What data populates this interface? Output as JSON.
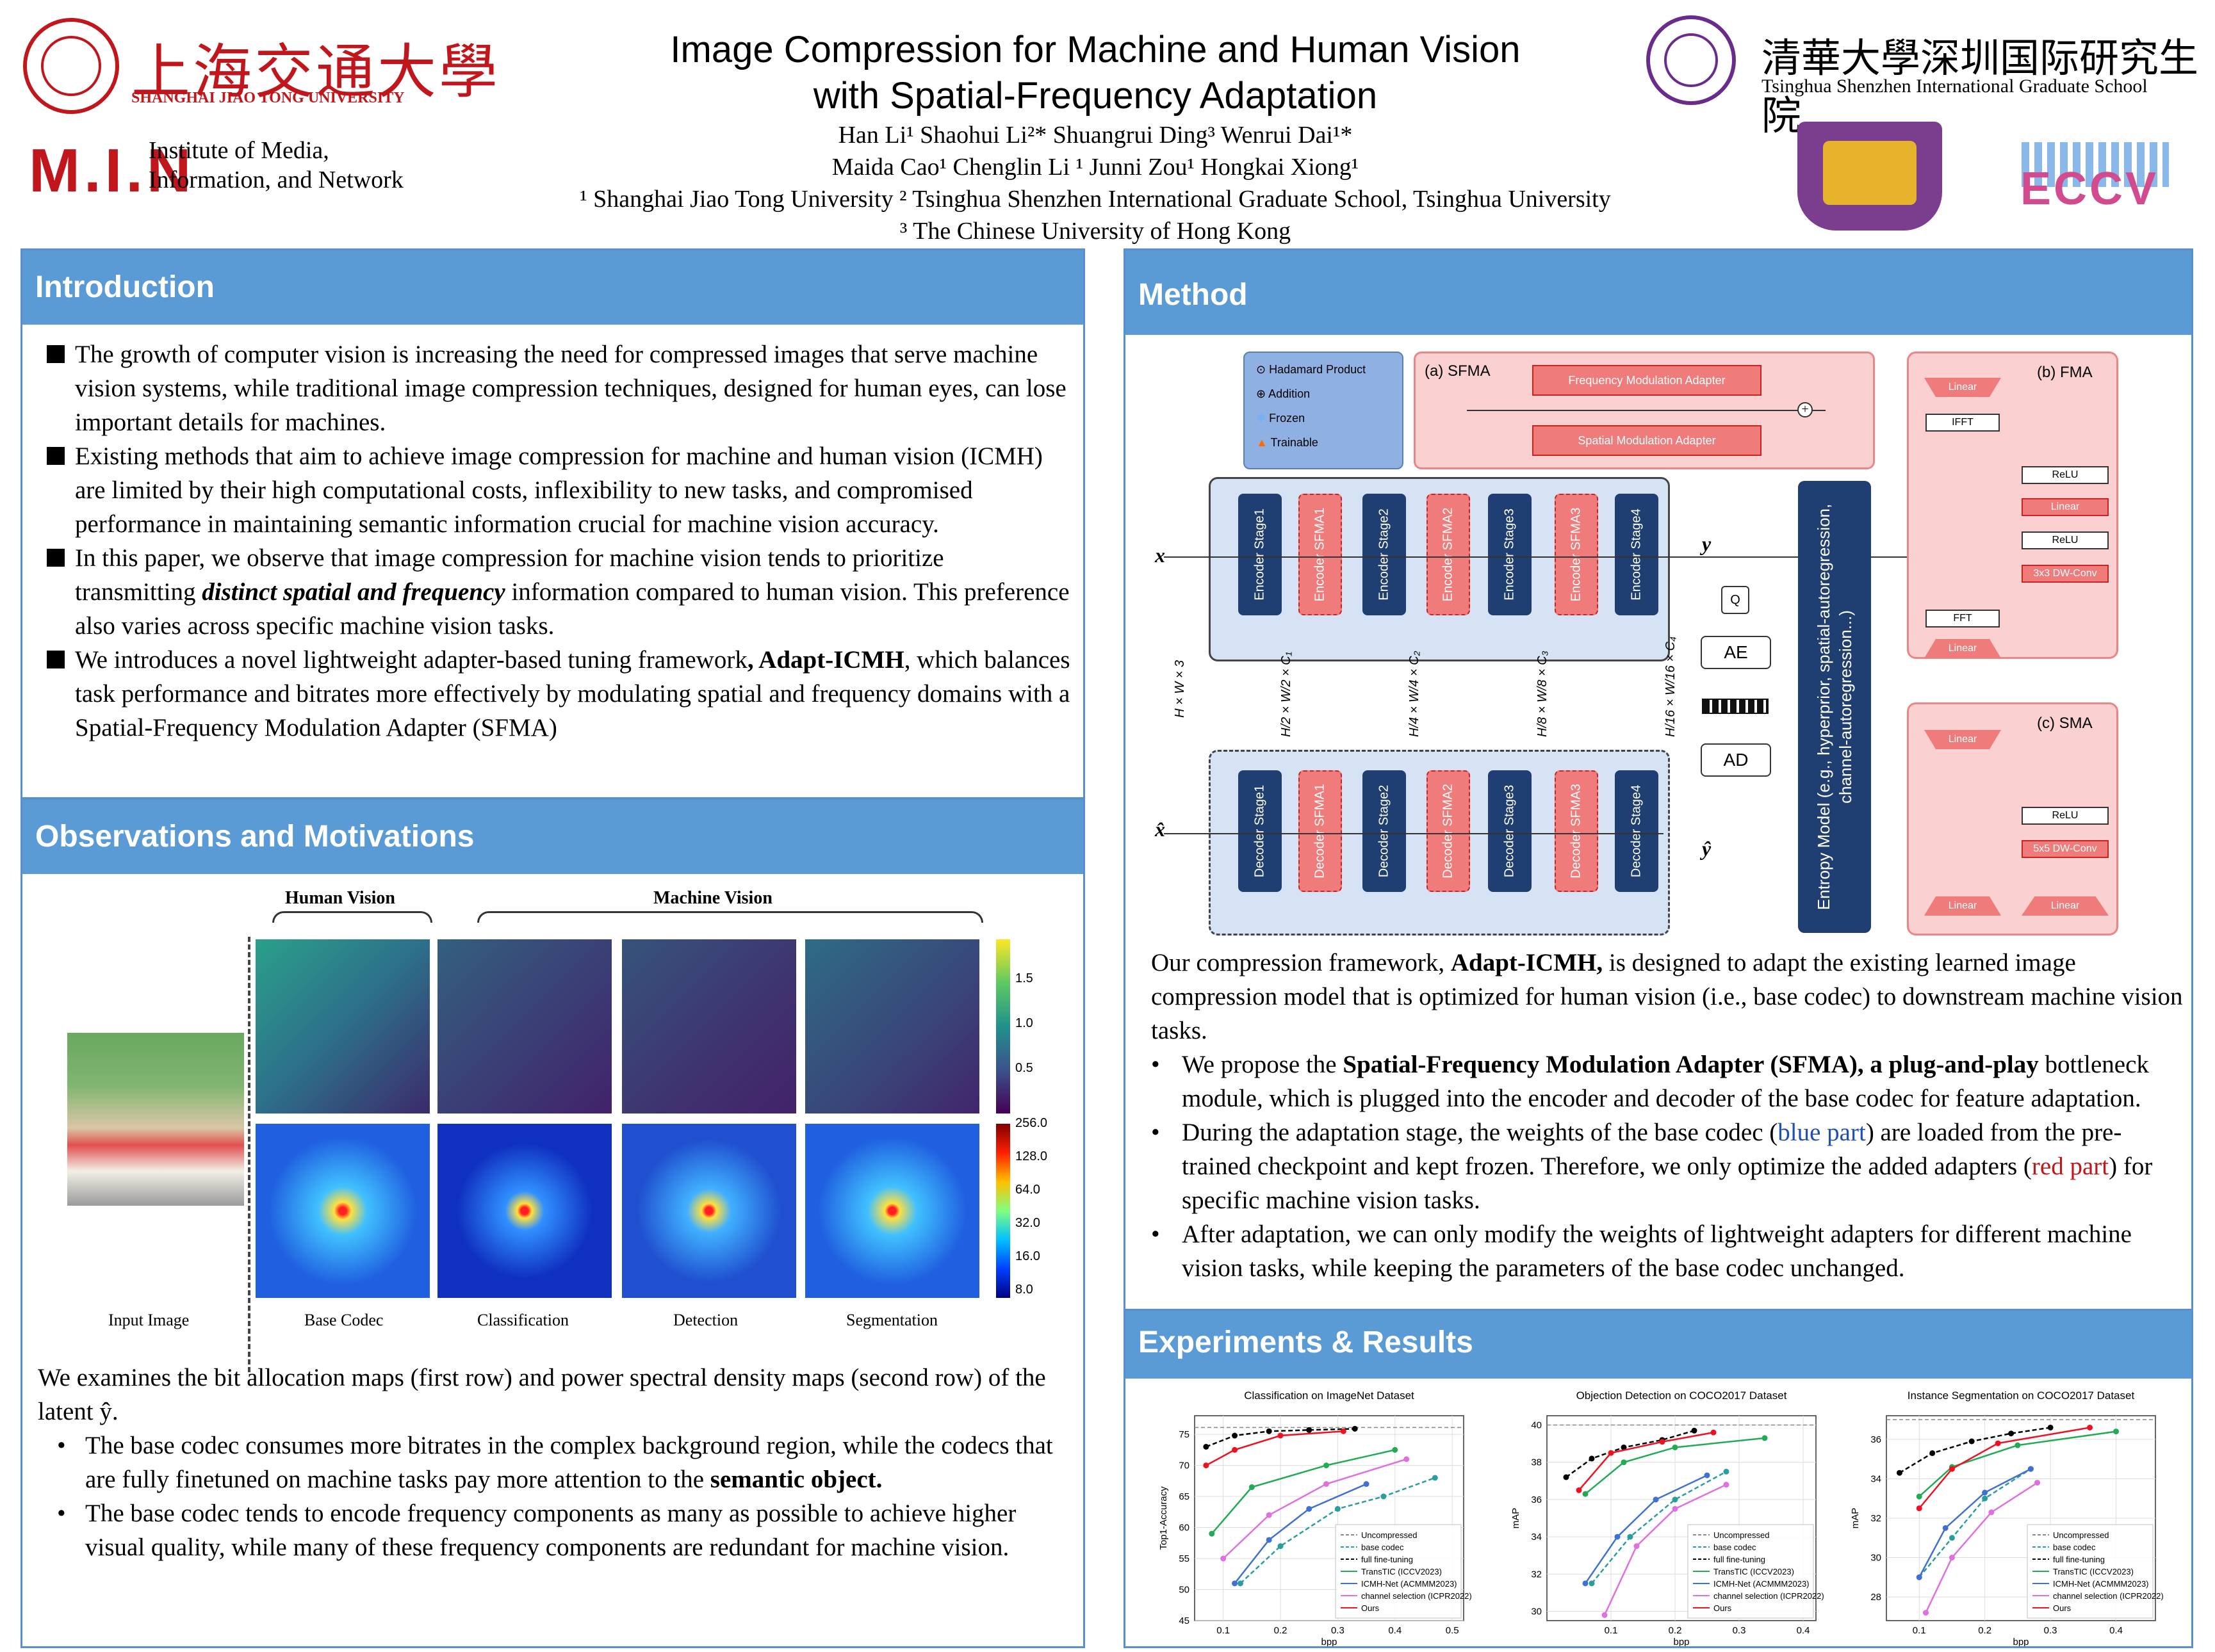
{
  "header": {
    "title_line1": "Image Compression for Machine and Human Vision",
    "title_line2": "with Spatial-Frequency Adaptation",
    "authors_line1": "Han Li¹  Shaohui Li²*  Shuangrui Ding³  Wenrui Dai¹*",
    "authors_line2": "Maida Cao¹  Chenglin Li ¹ Junni Zou¹  Hongkai Xiong¹",
    "affil_line1": "¹ Shanghai Jiao Tong University     ² Tsinghua Shenzhen International Graduate School, Tsinghua University",
    "affil_line2": "³ The Chinese University of Hong Kong",
    "sjtu_name": "上海交通大學",
    "sjtu_en": "SHANGHAI JIAO TONG UNIVERSITY",
    "min_logo": "M.I.N",
    "min_text1": "Institute of Media,",
    "min_text2": "Information, and Network",
    "tsinghua_name": "清華大學深圳国际研究生院",
    "tsinghua_en": "Tsinghua Shenzhen International Graduate School",
    "eccv": "ECCV"
  },
  "intro": {
    "heading": "Introduction",
    "b1": "The growth of computer vision is increasing the need for compressed images that serve machine vision systems, while traditional image compression techniques, designed for human eyes, can lose important details for machines.",
    "b2": "Existing methods that aim to achieve image compression for machine and human vision (ICMH) are limited by their high computational costs, inflexibility to new tasks, and compromised performance in maintaining semantic information crucial for machine vision accuracy.",
    "b3a": "In this paper, we observe that image compression for machine vision tends to prioritize transmitting ",
    "b3b": "distinct spatial and frequency",
    "b3c": " information compared to human vision. This preference also varies across specific machine vision tasks.",
    "b4a": "We introduces a novel lightweight adapter-based tuning framework",
    "b4b": ", Adapt-ICMH",
    "b4c": ", which balances task performance and bitrates more effectively by modulating spatial and frequency domains with a Spatial-Frequency Modulation Adapter (SFMA)"
  },
  "obs": {
    "heading": "Observations and Motivations",
    "human_vision": "Human Vision",
    "machine_vision": "Machine Vision",
    "cbar1": [
      "1.5",
      "1.0",
      "0.5"
    ],
    "cbar2": [
      "256.0",
      "128.0",
      "64.0",
      "32.0",
      "16.0",
      "8.0"
    ],
    "col_labels": [
      "Input Image",
      "Base Codec",
      "Classification",
      "Detection",
      "Segmentation"
    ],
    "p1": "We examines the bit allocation maps (first row) and power spectral density maps (second row) of the latent ŷ.",
    "d1a": "The base codec consumes more bitrates in the complex background region, while the codecs that are fully finetuned on machine tasks pay more attention to the ",
    "d1b": "semantic object.",
    "d2": "The base codec tends to encode frequency components as many as possible to achieve higher visual quality, while many of these frequency components are redundant for machine vision."
  },
  "method": {
    "heading": "Method",
    "legend": [
      "Hadamard Product",
      "Addition",
      "Frozen",
      "Trainable"
    ],
    "sfma_title": "(a) SFMA",
    "fma_adapter": "Frequency Modulation Adapter",
    "sma_adapter": "Spatial Modulation Adapter",
    "encoders": [
      "Encoder Stage1",
      "Encoder SFMA1",
      "Encoder Stage2",
      "Encoder SFMA2",
      "Encoder Stage3",
      "Encoder SFMA3",
      "Encoder Stage4"
    ],
    "decoders": [
      "Decoder Stage1",
      "Decoder SFMA1",
      "Decoder Stage2",
      "Decoder SFMA2",
      "Decoder Stage3",
      "Decoder SFMA3",
      "Decoder Stage4"
    ],
    "x": "x",
    "xhat": "x̂",
    "y": "y",
    "yhat": "ŷ",
    "q": "Q",
    "ae": "AE",
    "ad": "AD",
    "dims": [
      "H × W × 3",
      "H/2 × W/2 × C₁",
      "H/4 × W/4 × C₂",
      "H/8 × W/8 × C₃",
      "H/16 × W/16 × C₄"
    ],
    "entropy": "Entropy Model (e.g., hyperprior, spatial-autoregression, channel-autoregression...)",
    "fma_title": "(b) FMA",
    "fma_blocks": [
      "Linear",
      "IFFT",
      "ReLU",
      "Linear",
      "ReLU",
      "3x3 DW-Conv",
      "FFT",
      "Linear"
    ],
    "sma_title": "(c) SMA",
    "sma_blocks": [
      "Linear",
      "ReLU",
      "5x5 DW-Conv",
      "Linear",
      "Linear"
    ],
    "p1a": "Our compression framework, ",
    "p1b": "Adapt-ICMH,",
    "p1c": " is designed to adapt the existing learned image compression model that is optimized for human vision (i.e., base codec) to downstream machine vision tasks.",
    "d1a": "We propose the ",
    "d1b": "Spatial-Frequency Modulation Adapter (SFMA), a plug-and-play",
    "d1c": " bottleneck module, which is plugged into the encoder and decoder of the base codec for feature adaptation.",
    "d2a": "During the adaptation stage, the weights of the base codec (",
    "d2b": "blue part",
    "d2c": ") are loaded from the pre-trained checkpoint and kept frozen. Therefore, we only optimize the added adapters (",
    "d2d": "red part",
    "d2e": ") for specific machine vision tasks.",
    "d3": "After adaptation, we can only modify the weights of lightweight adapters for different machine vision tasks, while keeping the parameters of the base codec unchanged."
  },
  "results": {
    "heading": "Experiments & Results",
    "legend": [
      "Uncompressed",
      "base codec",
      "full fine-tuning",
      "TransTIC (ICCV2023)",
      "ICMH-Net (ACMMM2023)",
      "channel selection (ICPR2022)",
      "Ours"
    ]
  },
  "chart_data": [
    {
      "type": "line",
      "title": "Classification on ImageNet Dataset",
      "xlabel": "bpp",
      "ylabel": "Top1-Accuracy",
      "xlim": [
        0.05,
        0.52
      ],
      "ylim": [
        45,
        78
      ],
      "xticks": [
        "0.1",
        "0.2",
        "0.3",
        "0.4",
        "0.5"
      ],
      "yticks": [
        "45",
        "50",
        "55",
        "60",
        "65",
        "70",
        "75"
      ],
      "uncompressed": 76.1,
      "series": [
        {
          "name": "base codec",
          "color": "#2a9d9d",
          "dash": true,
          "x": [
            0.13,
            0.2,
            0.3,
            0.38,
            0.47
          ],
          "y": [
            51,
            57,
            63,
            65,
            68
          ]
        },
        {
          "name": "full fine-tuning",
          "color": "#000000",
          "dash": true,
          "x": [
            0.07,
            0.12,
            0.18,
            0.25,
            0.33
          ],
          "y": [
            73,
            74.8,
            75.5,
            75.7,
            75.9
          ]
        },
        {
          "name": "TransTIC (ICCV2023)",
          "color": "#22aa55",
          "x": [
            0.08,
            0.15,
            0.28,
            0.4
          ],
          "y": [
            59,
            66.5,
            70,
            72.5
          ]
        },
        {
          "name": "ICMH-Net (ACMMM2023)",
          "color": "#4070d0",
          "x": [
            0.12,
            0.18,
            0.25,
            0.35
          ],
          "y": [
            51,
            58,
            63,
            67
          ]
        },
        {
          "name": "channel selection (ICPR2022)",
          "color": "#e070e0",
          "x": [
            0.1,
            0.18,
            0.28,
            0.42
          ],
          "y": [
            55,
            62,
            67,
            71
          ]
        },
        {
          "name": "Ours",
          "color": "#ee1122",
          "x": [
            0.07,
            0.12,
            0.2,
            0.31
          ],
          "y": [
            70,
            72.5,
            74.8,
            75.5
          ]
        }
      ]
    },
    {
      "type": "line",
      "title": "Objection Detection on COCO2017 Dataset",
      "xlabel": "bpp",
      "ylabel": "mAP",
      "xlim": [
        0.0,
        0.42
      ],
      "ylim": [
        29.5,
        40.5
      ],
      "xticks": [
        "0.1",
        "0.2",
        "0.3",
        "0.4"
      ],
      "yticks": [
        "30",
        "32",
        "34",
        "36",
        "38",
        "40"
      ],
      "uncompressed": 40,
      "series": [
        {
          "name": "base codec",
          "color": "#2a9d9d",
          "dash": true,
          "x": [
            0.07,
            0.13,
            0.2,
            0.28
          ],
          "y": [
            31.5,
            34,
            36,
            37.5
          ]
        },
        {
          "name": "full fine-tuning",
          "color": "#000000",
          "dash": true,
          "x": [
            0.03,
            0.07,
            0.12,
            0.18,
            0.23
          ],
          "y": [
            37.2,
            38.2,
            38.8,
            39.2,
            39.7
          ]
        },
        {
          "name": "TransTIC (ICCV2023)",
          "color": "#22aa55",
          "x": [
            0.06,
            0.12,
            0.2,
            0.34
          ],
          "y": [
            36.3,
            38,
            38.8,
            39.3
          ]
        },
        {
          "name": "ICMH-Net (ACMMM2023)",
          "color": "#4070d0",
          "x": [
            0.06,
            0.11,
            0.17,
            0.25
          ],
          "y": [
            31.5,
            34,
            36,
            37.3
          ]
        },
        {
          "name": "channel selection (ICPR2022)",
          "color": "#e070e0",
          "x": [
            0.09,
            0.14,
            0.2,
            0.28
          ],
          "y": [
            29.8,
            33.5,
            35.5,
            36.8
          ]
        },
        {
          "name": "Ours",
          "color": "#ee1122",
          "x": [
            0.05,
            0.1,
            0.18,
            0.26
          ],
          "y": [
            36.5,
            38.5,
            39.1,
            39.6
          ]
        }
      ]
    },
    {
      "type": "line",
      "title": "Instance Segmentation on COCO2017 Dataset",
      "xlabel": "bpp",
      "ylabel": "mAP",
      "xlim": [
        0.05,
        0.46
      ],
      "ylim": [
        26.8,
        37.2
      ],
      "xticks": [
        "0.1",
        "0.2",
        "0.3",
        "0.4"
      ],
      "yticks": [
        "28",
        "30",
        "32",
        "34",
        "36"
      ],
      "uncompressed": 37,
      "series": [
        {
          "name": "base codec",
          "color": "#2a9d9d",
          "dash": true,
          "x": [
            0.1,
            0.15,
            0.2,
            0.27
          ],
          "y": [
            29,
            31,
            33,
            34.5
          ]
        },
        {
          "name": "full fine-tuning",
          "color": "#000000",
          "dash": true,
          "x": [
            0.07,
            0.12,
            0.18,
            0.24,
            0.3
          ],
          "y": [
            34.3,
            35.3,
            35.9,
            36.3,
            36.6
          ]
        },
        {
          "name": "TransTIC (ICCV2023)",
          "color": "#22aa55",
          "x": [
            0.1,
            0.15,
            0.25,
            0.4
          ],
          "y": [
            33.1,
            34.6,
            35.7,
            36.4
          ]
        },
        {
          "name": "ICMH-Net (ACMMM2023)",
          "color": "#4070d0",
          "x": [
            0.1,
            0.14,
            0.2,
            0.27
          ],
          "y": [
            29,
            31.5,
            33.3,
            34.5
          ]
        },
        {
          "name": "channel selection (ICPR2022)",
          "color": "#e070e0",
          "x": [
            0.11,
            0.15,
            0.21,
            0.28
          ],
          "y": [
            27.2,
            30,
            32.3,
            33.8
          ]
        },
        {
          "name": "Ours",
          "color": "#ee1122",
          "x": [
            0.1,
            0.15,
            0.22,
            0.36
          ],
          "y": [
            32.5,
            34.5,
            35.8,
            36.6
          ]
        }
      ]
    }
  ]
}
